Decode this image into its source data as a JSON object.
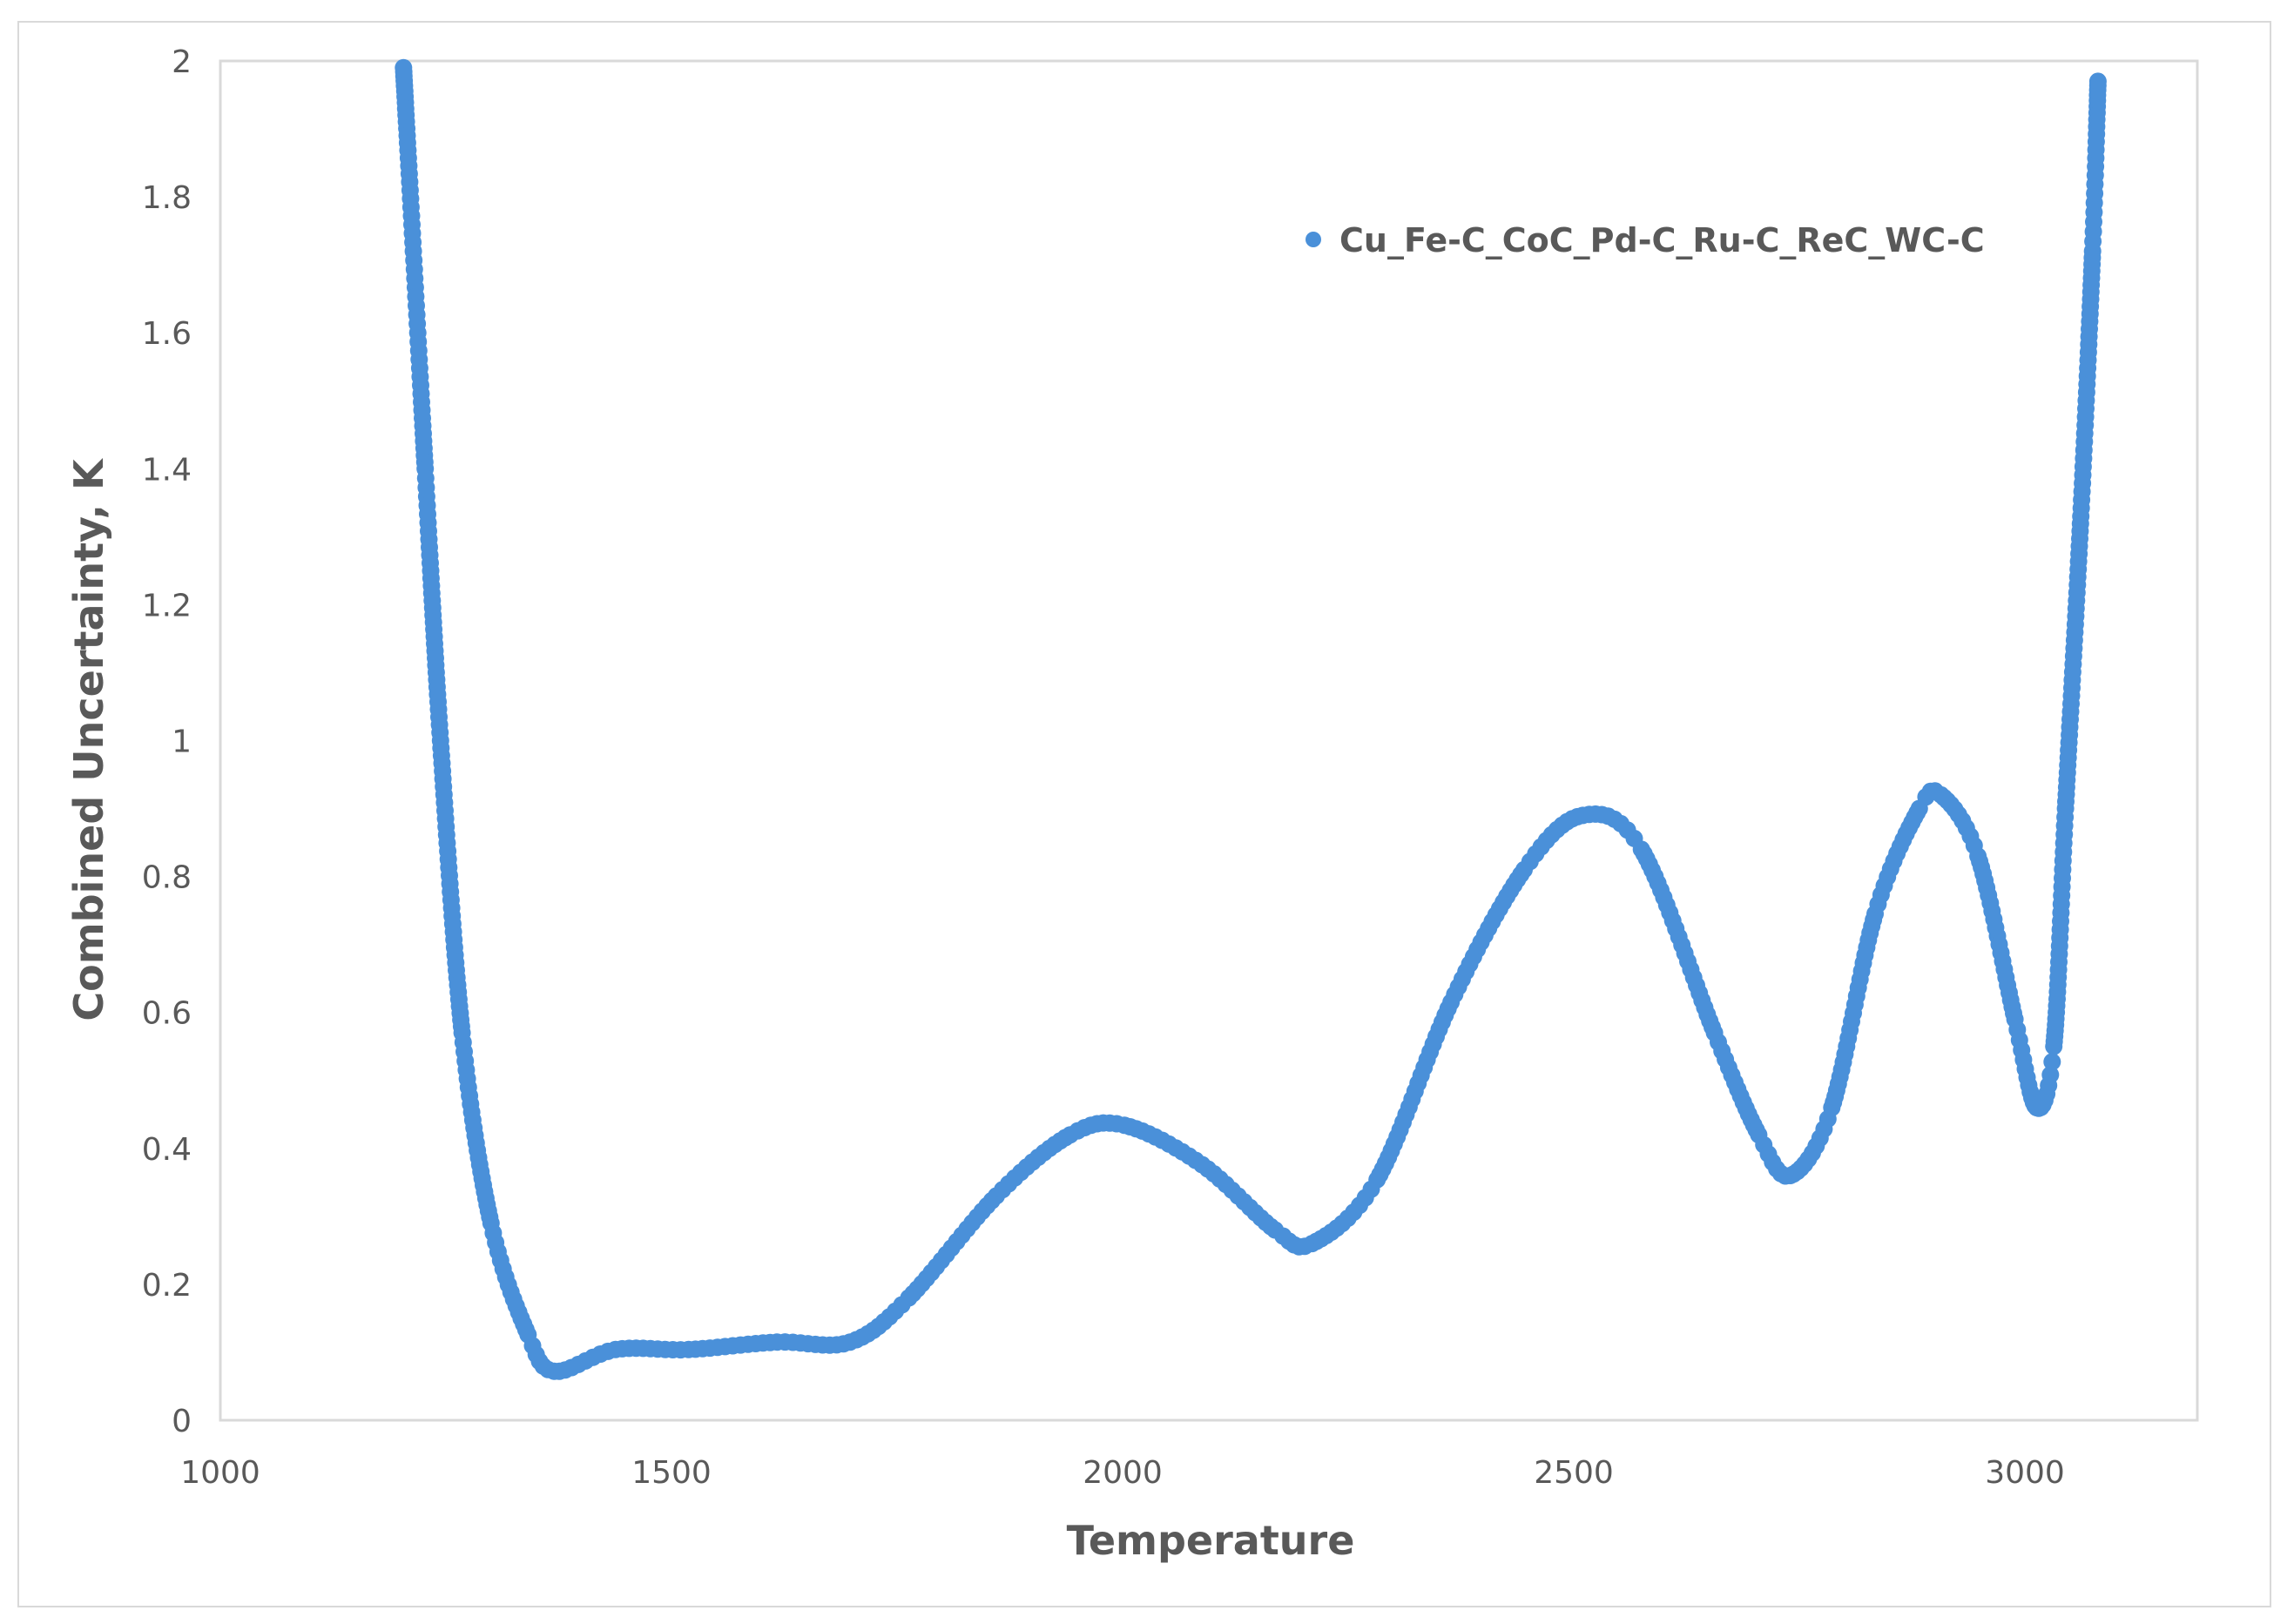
{
  "chart_data": {
    "type": "scatter",
    "title": "",
    "xlabel": "Temperature",
    "ylabel": "Combined Uncertainty, K",
    "xlim": [
      1000,
      3200
    ],
    "ylim": [
      0,
      2
    ],
    "x_ticks": [
      1000,
      1500,
      2000,
      2500,
      3000
    ],
    "x_tick_labels": [
      "1000",
      "1500",
      "2000",
      "2500",
      "3000"
    ],
    "y_ticks": [
      0,
      0.2,
      0.4,
      0.6,
      0.8,
      1,
      1.2,
      1.4,
      1.6,
      1.8,
      2
    ],
    "y_tick_labels": [
      "0",
      "0.2",
      "0.4",
      "0.6",
      "0.8",
      "1",
      "1.2",
      "1.4",
      "1.6",
      "1.8",
      "2"
    ],
    "grid": false,
    "legend_position": "upper right (inside plot)",
    "series": [
      {
        "name": "Cu_Fe-C_CoC_Pd-C_Ru-C_ReC_WC-C",
        "color": "#4a90d9",
        "marker": "circle",
        "x": [
          1203,
          1227,
          1244,
          1268,
          1300,
          1341,
          1370,
          1438,
          1519,
          1617,
          1698,
          1763,
          1860,
          1942,
          2002,
          2088,
          2169,
          2210,
          2282,
          2364,
          2445,
          2510,
          2575,
          2656,
          2705,
          2740,
          2786,
          2834,
          2883,
          2907,
          2948,
          2989,
          3013,
          3032,
          3045,
          3062,
          3075,
          3081
        ],
        "values": [
          1.99,
          1.4,
          1.0,
          0.57,
          0.29,
          0.126,
          0.072,
          0.104,
          0.104,
          0.115,
          0.115,
          0.18,
          0.33,
          0.42,
          0.434,
          0.376,
          0.28,
          0.26,
          0.354,
          0.615,
          0.81,
          0.89,
          0.84,
          0.57,
          0.42,
          0.36,
          0.46,
          0.745,
          0.9,
          0.92,
          0.83,
          0.59,
          0.46,
          0.55,
          0.9,
          1.33,
          1.72,
          1.97
        ]
      }
    ]
  },
  "legend": {
    "label": "Cu_Fe-C_CoC_Pd-C_Ru-C_ReC_WC-C",
    "marker_color": "#4a90d9"
  },
  "axes": {
    "x_title": "Temperature",
    "y_title": "Combined Uncertainty, K",
    "x_labels": [
      "1000",
      "1500",
      "2000",
      "2500",
      "3000"
    ],
    "y_labels": [
      "0",
      "0.2",
      "0.4",
      "0.6",
      "0.8",
      "1",
      "1.2",
      "1.4",
      "1.6",
      "1.8",
      "2"
    ]
  },
  "colors": {
    "series": "#4a90d9",
    "axis_text": "#595959",
    "plot_border": "#d9d9d9"
  }
}
